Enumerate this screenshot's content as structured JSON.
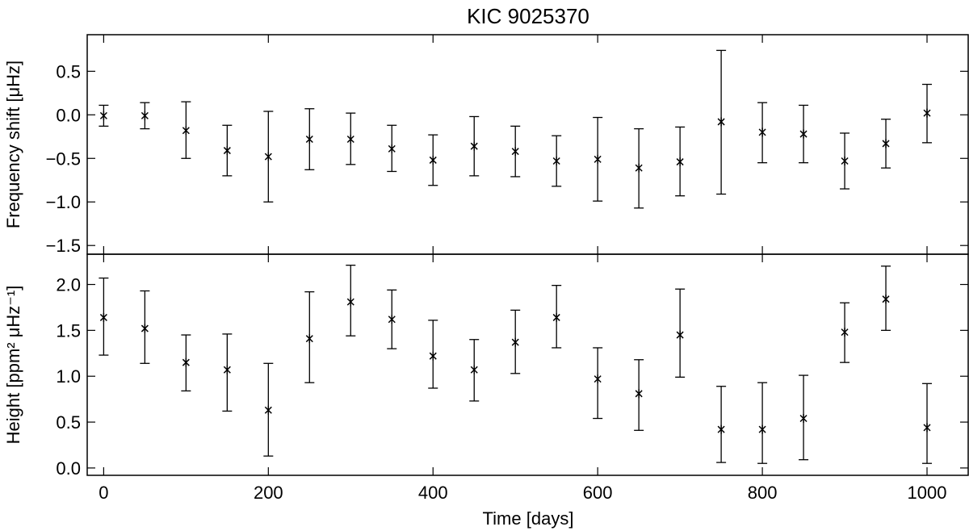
{
  "chart_data": {
    "type": "scatter",
    "title": "KIC 9025370",
    "xlabel": "Time [days]",
    "xlim": [
      -20,
      1050
    ],
    "xticks": [
      0,
      200,
      400,
      600,
      800,
      1000
    ],
    "x": [
      0,
      50,
      100,
      150,
      200,
      250,
      300,
      350,
      400,
      450,
      500,
      550,
      600,
      650,
      700,
      750,
      800,
      850,
      900,
      950,
      1000
    ],
    "panels": [
      {
        "id": "frequency-shift",
        "ylabel": "Frequency shift [μHz]",
        "ylim": [
          -1.6,
          0.92
        ],
        "yticks": [
          0.5,
          0.0,
          -0.5,
          -1.0,
          -1.5
        ],
        "yticklabels": [
          "0.5",
          "0.0",
          "−0.5",
          "−1.0",
          "−1.5"
        ],
        "values": [
          -0.01,
          -0.01,
          -0.18,
          -0.41,
          -0.48,
          -0.28,
          -0.28,
          -0.39,
          -0.52,
          -0.36,
          -0.42,
          -0.53,
          -0.51,
          -0.61,
          -0.54,
          -0.08,
          -0.2,
          -0.22,
          -0.53,
          -0.33,
          0.02
        ],
        "err_low": [
          -0.13,
          -0.16,
          -0.5,
          -0.7,
          -1.0,
          -0.63,
          -0.57,
          -0.65,
          -0.81,
          -0.7,
          -0.71,
          -0.82,
          -0.99,
          -1.07,
          -0.93,
          -0.91,
          -0.55,
          -0.55,
          -0.85,
          -0.61,
          -0.32
        ],
        "err_high": [
          0.11,
          0.14,
          0.15,
          -0.12,
          0.04,
          0.07,
          0.02,
          -0.12,
          -0.23,
          -0.02,
          -0.13,
          -0.24,
          -0.03,
          -0.16,
          -0.14,
          0.74,
          0.14,
          0.11,
          -0.21,
          -0.05,
          0.35
        ]
      },
      {
        "id": "height",
        "ylabel": "Height [ppm² μHz⁻¹]",
        "ylim": [
          -0.08,
          2.33
        ],
        "yticks": [
          0.0,
          0.5,
          1.0,
          1.5,
          2.0
        ],
        "yticklabels": [
          "0.0",
          "0.5",
          "1.0",
          "1.5",
          "2.0"
        ],
        "values": [
          1.64,
          1.52,
          1.15,
          1.07,
          0.63,
          1.41,
          1.81,
          1.62,
          1.22,
          1.07,
          1.37,
          1.64,
          0.97,
          0.81,
          1.45,
          0.42,
          0.42,
          0.54,
          1.48,
          1.84,
          0.44
        ],
        "err_low": [
          1.23,
          1.14,
          0.84,
          0.62,
          0.13,
          0.93,
          1.44,
          1.3,
          0.87,
          0.73,
          1.03,
          1.31,
          0.54,
          0.41,
          0.99,
          0.06,
          0.05,
          0.09,
          1.15,
          1.5,
          0.05
        ],
        "err_high": [
          2.07,
          1.93,
          1.45,
          1.46,
          1.14,
          1.92,
          2.21,
          1.94,
          1.61,
          1.4,
          1.72,
          1.99,
          1.31,
          1.18,
          1.95,
          0.89,
          0.93,
          1.01,
          1.8,
          2.2,
          0.92
        ]
      }
    ],
    "marker": "asterisk",
    "grid": false,
    "legend": "none"
  }
}
